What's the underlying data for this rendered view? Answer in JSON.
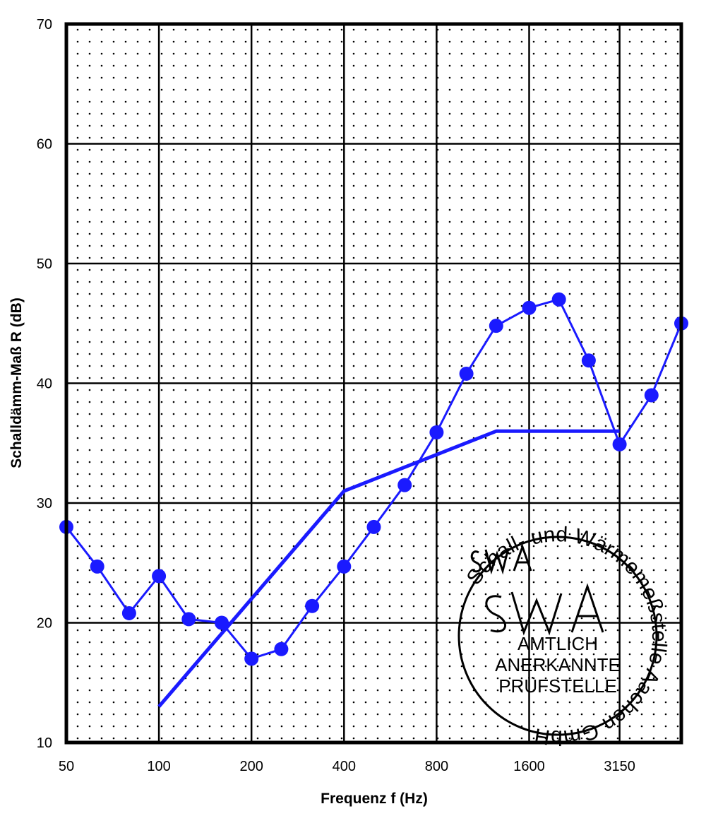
{
  "chart_data": {
    "type": "line",
    "title": "",
    "xlabel": "Frequenz f (Hz)",
    "ylabel": "Schalldämm-Maß R (dB)",
    "ylim": [
      10,
      70
    ],
    "yticks": [
      10,
      20,
      30,
      40,
      50,
      60,
      70
    ],
    "x_scale": "log (third-octave bands)",
    "x": [
      50,
      63,
      80,
      100,
      125,
      160,
      200,
      250,
      315,
      400,
      500,
      630,
      800,
      1000,
      1250,
      1600,
      2000,
      2500,
      3150,
      4000,
      5000
    ],
    "xtick_labels": [
      "50",
      "100",
      "200",
      "400",
      "800",
      "1600",
      "3150"
    ],
    "grid": true,
    "series": [
      {
        "values": [
          28.0,
          24.7,
          20.8,
          23.9,
          20.3,
          20.0,
          17.0,
          17.8,
          21.4,
          24.7,
          28.0,
          31.5,
          35.9,
          40.8,
          44.8,
          46.3,
          47.0,
          41.9,
          34.9,
          39.0,
          45.0
        ],
        "color": "#1a1aff",
        "marker": "circle"
      },
      {
        "x": [
          100,
          400,
          1250,
          3150
        ],
        "values": [
          13.0,
          31.0,
          36.0,
          36.0
        ],
        "color": "#1a1aff",
        "marker": "none"
      }
    ]
  },
  "stamp": {
    "ring_text": "Schall- und Wärmemeßstelle Aachen GmbH",
    "lines": [
      "AMTLICH",
      "ANERKANNTE",
      "PRÜFSTELLE"
    ],
    "logo": "SWA"
  }
}
